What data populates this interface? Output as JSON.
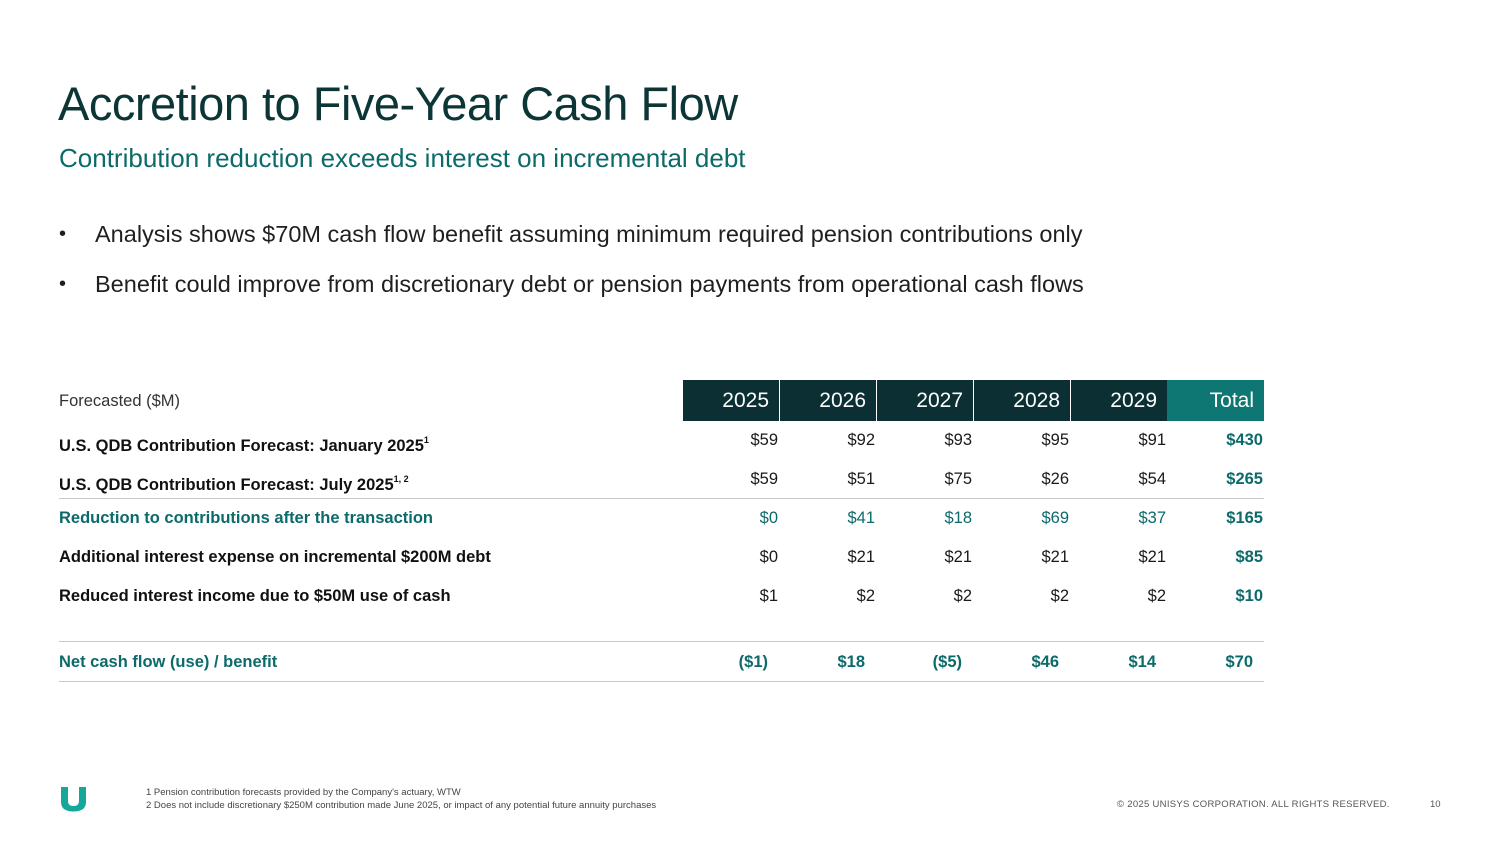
{
  "title": "Accretion to Five-Year Cash Flow",
  "subtitle": "Contribution reduction exceeds interest on incremental debt",
  "bullets": [
    "Analysis shows $70M cash flow benefit assuming minimum required pension contributions only",
    "Benefit could improve from discretionary debt or pension payments from operational cash flows"
  ],
  "table": {
    "header_label": "Forecasted ($M)",
    "columns": [
      "2025",
      "2026",
      "2027",
      "2028",
      "2029",
      "Total"
    ],
    "rows": [
      {
        "label": "U.S. QDB Contribution Forecast: January 2025",
        "sup": "1",
        "values": [
          "$59",
          "$92",
          "$93",
          "$95",
          "$91",
          "$430"
        ]
      },
      {
        "label": "U.S. QDB Contribution Forecast: July 2025",
        "sup": "1, 2",
        "values": [
          "$59",
          "$51",
          "$75",
          "$26",
          "$54",
          "$265"
        ]
      },
      {
        "label": "Reduction to contributions after the transaction",
        "values": [
          "$0",
          "$41",
          "$18",
          "$69",
          "$37",
          "$165"
        ]
      },
      {
        "label": "Additional interest expense on incremental $200M debt",
        "values": [
          "$0",
          "$21",
          "$21",
          "$21",
          "$21",
          "$85"
        ]
      },
      {
        "label": "Reduced interest income due to $50M use of cash",
        "values": [
          "$1",
          "$2",
          "$2",
          "$2",
          "$2",
          "$10"
        ]
      }
    ],
    "net_row": {
      "label": "Net cash flow (use) / benefit",
      "values": [
        "($1)",
        "$18",
        "($5)",
        "$46",
        "$14",
        "$70"
      ]
    }
  },
  "footnotes": [
    "1 Pension contribution forecasts provided by the Company's actuary, WTW",
    "2 Does not include discretionary $250M contribution made June 2025, or impact of any potential future annuity purchases"
  ],
  "copyright": "© 2025 UNISYS CORPORATION. ALL RIGHTS RESERVED.",
  "page_number": "10",
  "colors": {
    "dark_header": "#0c2f33",
    "teal": "#0d6a6a",
    "total_header": "#0e7773",
    "logo": "#15a89a"
  },
  "logo_icon": "unisys-u-logo"
}
